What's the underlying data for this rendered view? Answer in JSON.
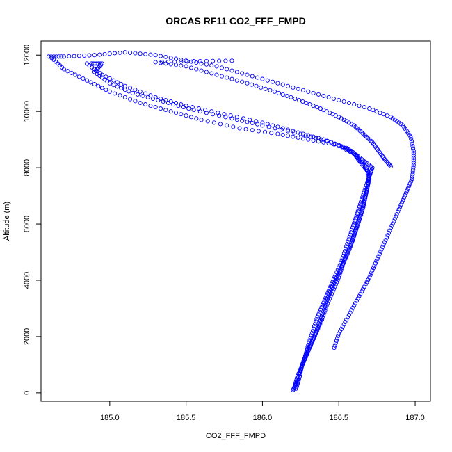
{
  "chart_data": {
    "type": "scatter",
    "title": "ORCAS RF11 CO2_FFF_FMPD",
    "xlabel": "CO2_FFF_FMPD",
    "ylabel": "Altitude (m)",
    "xlim": [
      184.55,
      187.1
    ],
    "ylim": [
      -300,
      12500
    ],
    "x_ticks": [
      185.0,
      185.5,
      186.0,
      186.5,
      187.0
    ],
    "x_tick_labels": [
      "185.0",
      "185.5",
      "186.0",
      "186.5",
      "187.0"
    ],
    "y_ticks": [
      0,
      2000,
      4000,
      6000,
      8000,
      10000,
      12000
    ],
    "y_tick_labels": [
      "0",
      "2000",
      "4000",
      "6000",
      "8000",
      "10000",
      "12000"
    ],
    "marker": "open-circle",
    "color": "#0000ff",
    "grid": false,
    "legend": "none",
    "series": [
      {
        "points": [
          [
            186.2,
            100
          ],
          [
            186.22,
            300
          ],
          [
            186.25,
            800
          ],
          [
            186.28,
            1300
          ],
          [
            186.3,
            1700
          ],
          [
            186.33,
            2200
          ],
          [
            186.36,
            2700
          ],
          [
            186.4,
            3200
          ],
          [
            186.44,
            3700
          ],
          [
            186.48,
            4200
          ],
          [
            186.52,
            4700
          ],
          [
            186.55,
            5200
          ],
          [
            186.58,
            5700
          ],
          [
            186.61,
            6200
          ],
          [
            186.64,
            6700
          ],
          [
            186.67,
            7200
          ],
          [
            186.7,
            7700
          ],
          [
            186.72,
            8000
          ],
          [
            186.65,
            8300
          ],
          [
            186.58,
            8600
          ],
          [
            186.5,
            8800
          ],
          [
            186.3,
            9000
          ],
          [
            186.1,
            9200
          ],
          [
            185.85,
            9400
          ],
          [
            185.6,
            9700
          ],
          [
            185.4,
            10000
          ],
          [
            185.2,
            10300
          ],
          [
            185.0,
            10700
          ],
          [
            184.85,
            11100
          ],
          [
            184.7,
            11500
          ],
          [
            184.62,
            11900
          ]
        ]
      },
      {
        "points": [
          [
            186.21,
            200
          ],
          [
            186.23,
            600
          ],
          [
            186.27,
            1100
          ],
          [
            186.31,
            1600
          ],
          [
            186.35,
            2100
          ],
          [
            186.39,
            2600
          ],
          [
            186.42,
            3100
          ],
          [
            186.46,
            3600
          ],
          [
            186.5,
            4100
          ],
          [
            186.53,
            4600
          ],
          [
            186.57,
            5100
          ],
          [
            186.6,
            5600
          ],
          [
            186.63,
            6100
          ],
          [
            186.66,
            6600
          ],
          [
            186.68,
            7100
          ],
          [
            186.7,
            7600
          ],
          [
            186.68,
            8000
          ],
          [
            186.62,
            8400
          ],
          [
            186.55,
            8700
          ],
          [
            186.4,
            9000
          ],
          [
            186.2,
            9300
          ],
          [
            186.0,
            9600
          ],
          [
            185.75,
            9900
          ],
          [
            185.5,
            10200
          ],
          [
            185.3,
            10500
          ],
          [
            185.1,
            10900
          ],
          [
            184.95,
            11300
          ],
          [
            184.85,
            11700
          ]
        ]
      },
      {
        "points": [
          [
            186.22,
            150
          ],
          [
            186.24,
            500
          ],
          [
            186.26,
            1000
          ],
          [
            186.29,
            1400
          ],
          [
            186.33,
            1900
          ],
          [
            186.37,
            2400
          ],
          [
            186.4,
            2900
          ],
          [
            186.43,
            3400
          ],
          [
            186.47,
            3900
          ],
          [
            186.51,
            4400
          ],
          [
            186.55,
            4900
          ],
          [
            186.59,
            5400
          ],
          [
            186.62,
            5900
          ],
          [
            186.65,
            6400
          ],
          [
            186.67,
            6900
          ],
          [
            186.69,
            7400
          ],
          [
            186.7,
            7800
          ],
          [
            186.64,
            8200
          ],
          [
            186.6,
            8500
          ],
          [
            186.45,
            8900
          ],
          [
            186.25,
            9200
          ],
          [
            186.0,
            9500
          ],
          [
            185.8,
            9750
          ],
          [
            185.55,
            10050
          ],
          [
            185.35,
            10350
          ],
          [
            185.15,
            10650
          ],
          [
            185.0,
            11000
          ],
          [
            184.9,
            11400
          ],
          [
            184.95,
            11700
          ],
          [
            184.88,
            11700
          ]
        ]
      },
      {
        "points": [
          [
            186.47,
            1600
          ],
          [
            186.5,
            2100
          ],
          [
            186.55,
            2600
          ],
          [
            186.6,
            3100
          ],
          [
            186.65,
            3600
          ],
          [
            186.7,
            4100
          ],
          [
            186.74,
            4600
          ],
          [
            186.78,
            5100
          ],
          [
            186.82,
            5600
          ],
          [
            186.86,
            6100
          ],
          [
            186.9,
            6600
          ],
          [
            186.94,
            7100
          ],
          [
            186.98,
            7600
          ],
          [
            186.99,
            8100
          ],
          [
            186.99,
            8600
          ],
          [
            186.97,
            9100
          ],
          [
            186.92,
            9500
          ],
          [
            186.84,
            9800
          ],
          [
            186.7,
            10100
          ],
          [
            186.5,
            10400
          ],
          [
            186.3,
            10700
          ],
          [
            186.1,
            11000
          ],
          [
            185.9,
            11300
          ],
          [
            185.7,
            11600
          ],
          [
            185.5,
            11800
          ],
          [
            185.3,
            12000
          ],
          [
            185.1,
            12100
          ],
          [
            184.9,
            12000
          ],
          [
            184.7,
            11950
          ],
          [
            184.6,
            11950
          ]
        ]
      },
      {
        "points": [
          [
            186.84,
            8050
          ],
          [
            186.8,
            8300
          ],
          [
            186.76,
            8600
          ],
          [
            186.72,
            8900
          ],
          [
            186.66,
            9200
          ],
          [
            186.6,
            9500
          ],
          [
            186.5,
            9800
          ],
          [
            186.38,
            10100
          ],
          [
            186.24,
            10400
          ],
          [
            186.08,
            10700
          ],
          [
            185.9,
            11000
          ],
          [
            185.7,
            11300
          ],
          [
            185.5,
            11600
          ],
          [
            185.3,
            11750
          ],
          [
            185.55,
            11780
          ],
          [
            185.8,
            11800
          ]
        ]
      }
    ]
  }
}
